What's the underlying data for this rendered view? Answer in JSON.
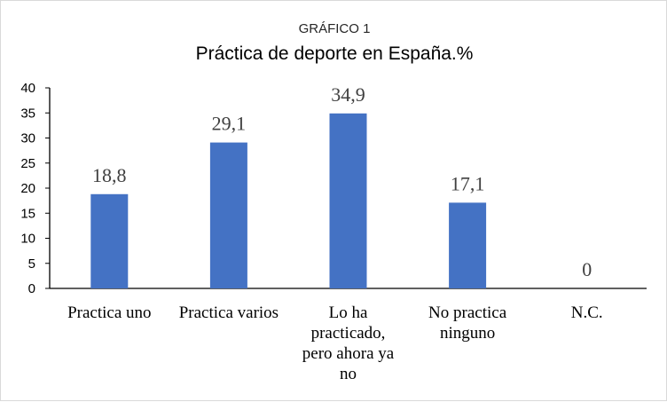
{
  "chart_data": {
    "type": "bar",
    "supertitle": "GRÁFICO 1",
    "title": "Práctica de deporte en España.%",
    "categories": [
      [
        "Practica uno"
      ],
      [
        "Practica varios"
      ],
      [
        "Lo ha",
        "practicado,",
        "pero ahora ya",
        "no"
      ],
      [
        "No practica",
        "ninguno"
      ],
      [
        "N.C."
      ]
    ],
    "values": [
      18.8,
      29.1,
      34.9,
      17.1,
      0
    ],
    "data_labels": [
      "18,8",
      "29,1",
      "34,9",
      "17,1",
      "0"
    ],
    "yticks": [
      0,
      5,
      10,
      15,
      20,
      25,
      30,
      35,
      40
    ],
    "ylim": [
      0,
      40
    ],
    "grid": false,
    "legend": "none",
    "bar_color": "#4472c4"
  }
}
